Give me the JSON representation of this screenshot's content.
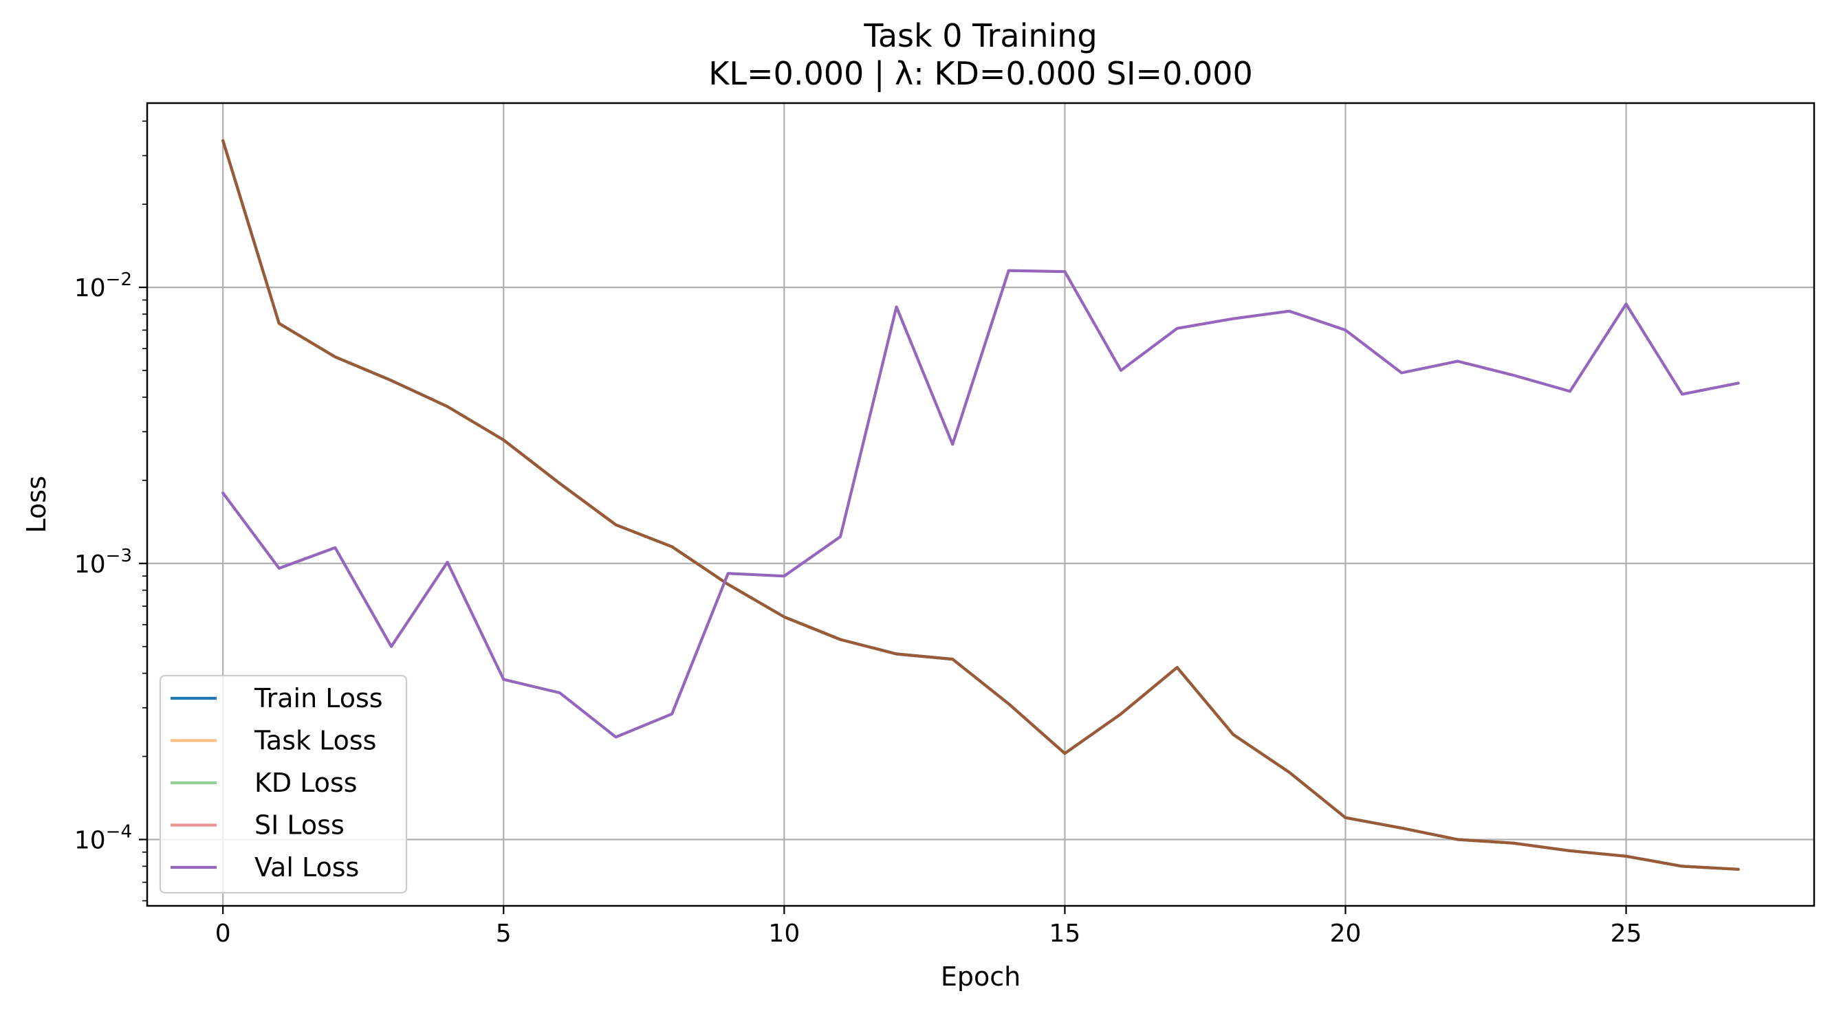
{
  "chart_data": {
    "type": "line",
    "title": "Task 0 Training",
    "subtitle": "KL=0.000 | λ: KD=0.000 SI=0.000",
    "xlabel": "Epoch",
    "ylabel": "Loss",
    "yscale": "log",
    "xlim": [
      -1.35,
      28.35
    ],
    "ylim": [
      5.75e-05,
      0.0465
    ],
    "x_ticks": [
      {
        "value": 0,
        "label": "0"
      },
      {
        "value": 5,
        "label": "5"
      },
      {
        "value": 10,
        "label": "10"
      },
      {
        "value": 15,
        "label": "15"
      },
      {
        "value": 20,
        "label": "20"
      },
      {
        "value": 25,
        "label": "25"
      }
    ],
    "y_ticks": [
      {
        "value": 0.0001,
        "mantissa": "10",
        "exponent": "−4"
      },
      {
        "value": 0.001,
        "mantissa": "10",
        "exponent": "−3"
      },
      {
        "value": 0.01,
        "mantissa": "10",
        "exponent": "−2"
      }
    ],
    "grid": true,
    "legend_position": "lower-left",
    "x": [
      0,
      1,
      2,
      3,
      4,
      5,
      6,
      7,
      8,
      9,
      10,
      11,
      12,
      13,
      14,
      15,
      16,
      17,
      18,
      19,
      20,
      21,
      22,
      23,
      24,
      25,
      26,
      27
    ],
    "series": [
      {
        "name": "Train Loss",
        "color": "#1f77b4",
        "alpha": 1.0,
        "values": [
          0.034,
          0.0074,
          0.0056,
          0.0046,
          0.0037,
          0.0028,
          0.00195,
          0.00138,
          0.00115,
          0.00084,
          0.00064,
          0.00053,
          0.00047,
          0.00045,
          0.00031,
          0.000205,
          0.000285,
          0.00042,
          0.00024,
          0.000175,
          0.00012,
          0.00011,
          0.0001,
          9.7e-05,
          9.1e-05,
          8.7e-05,
          8e-05,
          7.8e-05
        ]
      },
      {
        "name": "Task Loss",
        "color": "#ff7f0e",
        "alpha": 0.5,
        "values": [
          0.034,
          0.0074,
          0.0056,
          0.0046,
          0.0037,
          0.0028,
          0.00195,
          0.00138,
          0.00115,
          0.00084,
          0.00064,
          0.00053,
          0.00047,
          0.00045,
          0.00031,
          0.000205,
          0.000285,
          0.00042,
          0.00024,
          0.000175,
          0.00012,
          0.00011,
          0.0001,
          9.7e-05,
          9.1e-05,
          8.7e-05,
          8e-05,
          7.8e-05
        ]
      },
      {
        "name": "KD Loss",
        "color": "#2ca02c",
        "alpha": 0.5,
        "values": [
          0.034,
          0.0074,
          0.0056,
          0.0046,
          0.0037,
          0.0028,
          0.00195,
          0.00138,
          0.00115,
          0.00084,
          0.00064,
          0.00053,
          0.00047,
          0.00045,
          0.00031,
          0.000205,
          0.000285,
          0.00042,
          0.00024,
          0.000175,
          0.00012,
          0.00011,
          0.0001,
          9.7e-05,
          9.1e-05,
          8.7e-05,
          8e-05,
          7.8e-05
        ]
      },
      {
        "name": "SI Loss",
        "color": "#d62728",
        "alpha": 0.5,
        "values": [
          0.034,
          0.0074,
          0.0056,
          0.0046,
          0.0037,
          0.0028,
          0.00195,
          0.00138,
          0.00115,
          0.00084,
          0.00064,
          0.00053,
          0.00047,
          0.00045,
          0.00031,
          0.000205,
          0.000285,
          0.00042,
          0.00024,
          0.000175,
          0.00012,
          0.00011,
          0.0001,
          9.7e-05,
          9.1e-05,
          8.7e-05,
          8e-05,
          7.8e-05
        ]
      },
      {
        "name": "Val Loss",
        "color": "#9467bd",
        "alpha": 1.0,
        "values": [
          0.0018,
          0.00096,
          0.00114,
          0.0005,
          0.00101,
          0.00038,
          0.00034,
          0.000235,
          0.000285,
          0.00092,
          0.0009,
          0.00125,
          0.0085,
          0.0027,
          0.0115,
          0.0114,
          0.005,
          0.0071,
          0.0077,
          0.0082,
          0.007,
          0.0049,
          0.0054,
          0.0048,
          0.0042,
          0.0087,
          0.0041,
          0.0045
        ]
      }
    ]
  }
}
